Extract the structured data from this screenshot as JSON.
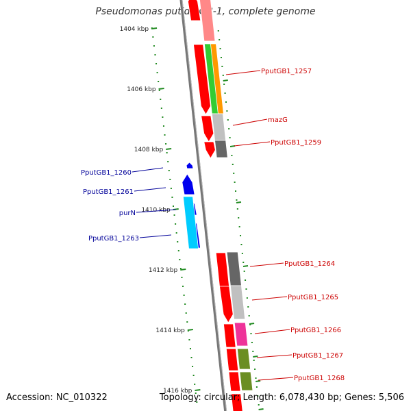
{
  "title": "Pseudomonas putida GB-1, complete genome",
  "footer": {
    "accession": "Accession: NC_010322",
    "summary": "Topology: circular; Length: 6,078,430 bp; Genes: 5,506"
  },
  "ruler": {
    "ticks": [
      "1404 kbp",
      "1406 kbp",
      "1408 kbp",
      "1410 kbp",
      "1412 kbp",
      "1414 kbp",
      "1416 kbp"
    ],
    "color": "#228b22"
  },
  "backbone_color": "#777777",
  "genes_forward": [
    {
      "label": "PputGB1_1257",
      "color": "#cc0000"
    },
    {
      "label": "mazG",
      "color": "#cc0000"
    },
    {
      "label": "PputGB1_1259",
      "color": "#cc0000"
    },
    {
      "label": "PputGB1_1264",
      "color": "#cc0000"
    },
    {
      "label": "PputGB1_1265",
      "color": "#cc0000"
    },
    {
      "label": "PputGB1_1266",
      "color": "#cc0000"
    },
    {
      "label": "PputGB1_1267",
      "color": "#cc0000"
    },
    {
      "label": "PputGB1_1268",
      "color": "#cc0000"
    }
  ],
  "genes_reverse": [
    {
      "label": "PputGB1_1260",
      "color": "#000099"
    },
    {
      "label": "PputGB1_1261",
      "color": "#000099"
    },
    {
      "label": "purN",
      "color": "#000099"
    },
    {
      "label": "PputGB1_1263",
      "color": "#000099"
    }
  ],
  "feature_colors": {
    "cds_forward": "#ff0000",
    "cds_reverse": "#0000ee",
    "cog_green": "#33cc33",
    "cog_orange": "#ff9900",
    "cog_lightgray": "#c0c0c0",
    "cog_darkgray": "#666666",
    "cog_cyan": "#00ccff",
    "cog_magenta": "#ee3399",
    "cog_olive": "#6b8e23",
    "cog_pink": "#ff8888"
  }
}
